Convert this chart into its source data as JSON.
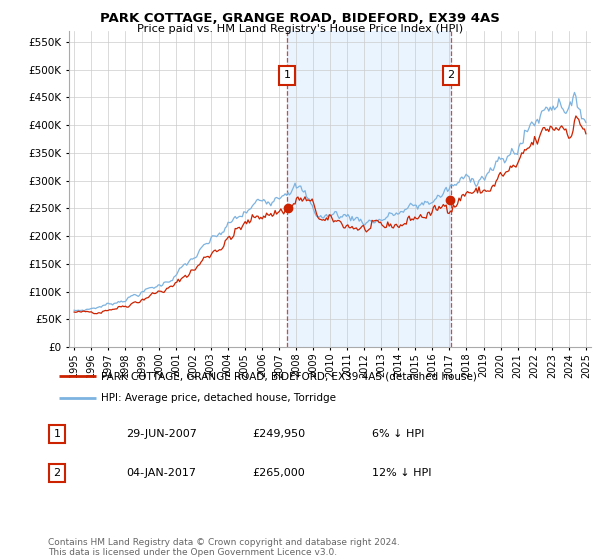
{
  "title": "PARK COTTAGE, GRANGE ROAD, BIDEFORD, EX39 4AS",
  "subtitle": "Price paid vs. HM Land Registry's House Price Index (HPI)",
  "legend_line1": "PARK COTTAGE, GRANGE ROAD, BIDEFORD, EX39 4AS (detached house)",
  "legend_line2": "HPI: Average price, detached house, Torridge",
  "transaction1_label": "1",
  "transaction1_date": "29-JUN-2007",
  "transaction1_price": "£249,950",
  "transaction1_hpi": "6% ↓ HPI",
  "transaction2_label": "2",
  "transaction2_date": "04-JAN-2017",
  "transaction2_price": "£265,000",
  "transaction2_hpi": "12% ↓ HPI",
  "footer": "Contains HM Land Registry data © Crown copyright and database right 2024.\nThis data is licensed under the Open Government Licence v3.0.",
  "hpi_color": "#7db3e0",
  "hpi_fill_color": "#ddeeff",
  "price_color": "#cc2200",
  "marker1_x": 2007.5,
  "marker2_x": 2017.08,
  "sale1_price": 249950,
  "sale2_price": 265000,
  "ylim_min": 0,
  "ylim_max": 570000,
  "xmin": 1994.7,
  "xmax": 2025.3
}
